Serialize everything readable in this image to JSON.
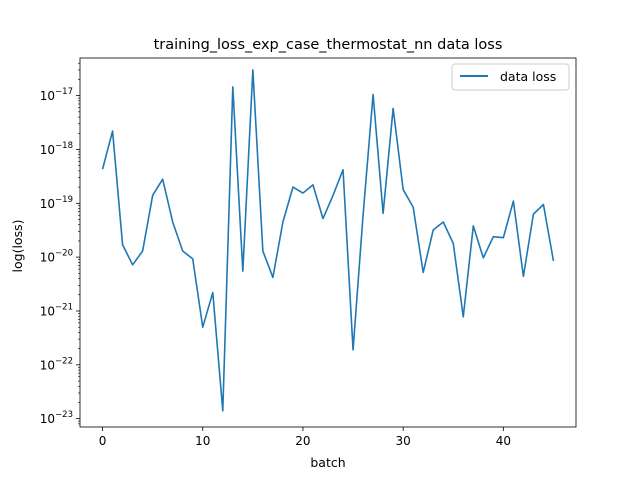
{
  "chart_data": {
    "type": "line",
    "title": "training_loss_exp_case_thermostat_nn data loss",
    "xlabel": "batch",
    "ylabel": "log(loss)",
    "yscale": "log",
    "xlim": [
      -2.25,
      47.25
    ],
    "ylim": [
      7e-24,
      5e-17
    ],
    "grid": false,
    "legend_position": "top-right",
    "x_ticks": [
      0,
      10,
      20,
      30,
      40
    ],
    "y_ticks": [
      {
        "value": 1e-23,
        "base": "10",
        "exp": "−23"
      },
      {
        "value": 1e-22,
        "base": "10",
        "exp": "−22"
      },
      {
        "value": 1e-21,
        "base": "10",
        "exp": "−21"
      },
      {
        "value": 1e-20,
        "base": "10",
        "exp": "−20"
      },
      {
        "value": 1e-19,
        "base": "10",
        "exp": "−19"
      },
      {
        "value": 1e-18,
        "base": "10",
        "exp": "−18"
      },
      {
        "value": 1e-17,
        "base": "10",
        "exp": "−17"
      }
    ],
    "series": [
      {
        "name": "data loss",
        "color": "#1f77b4",
        "x": [
          0,
          1,
          2,
          3,
          4,
          5,
          6,
          7,
          8,
          9,
          10,
          11,
          12,
          13,
          14,
          15,
          16,
          17,
          18,
          19,
          20,
          21,
          22,
          23,
          24,
          25,
          26,
          27,
          28,
          29,
          30,
          31,
          32,
          33,
          34,
          35,
          36,
          37,
          38,
          39,
          40,
          41,
          42,
          43,
          44,
          45
        ],
        "y": [
          4.3e-19,
          2.2e-18,
          1.7e-20,
          7.2e-21,
          1.3e-20,
          1.4e-19,
          2.8e-19,
          4.5e-20,
          1.3e-20,
          9.3e-21,
          5e-22,
          2.2e-21,
          1.4e-23,
          1.45e-17,
          5.5e-21,
          3e-17,
          1.3e-20,
          4.2e-21,
          4.5e-20,
          2e-19,
          1.55e-19,
          2.2e-19,
          5.2e-20,
          1.4e-19,
          4.2e-19,
          1.9e-22,
          6e-20,
          1.05e-17,
          6.5e-20,
          5.8e-18,
          1.8e-19,
          8.5e-20,
          5.2e-21,
          3.2e-20,
          4.5e-20,
          1.8e-20,
          7.8e-22,
          3.8e-20,
          9.7e-21,
          2.4e-20,
          2.3e-20,
          1.1e-19,
          4.4e-21,
          6.3e-20,
          9.5e-20,
          8.5e-21
        ]
      }
    ]
  }
}
